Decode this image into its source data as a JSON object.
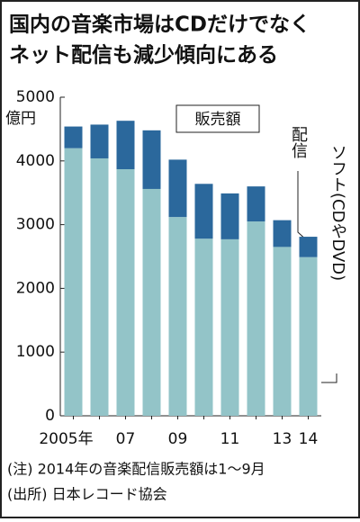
{
  "chart_data": {
    "type": "stacked_bar",
    "title_lines": [
      "国内の音楽市場はCDだけでなく",
      "ネット配信も減少傾向にある"
    ],
    "y_unit": "億円",
    "annotation": "販売額",
    "categories": [
      "2005年",
      null,
      "07",
      null,
      "09",
      null,
      "11",
      null,
      "13",
      "14"
    ],
    "series": [
      {
        "name": "ソフト(CDやDVD)",
        "color": "#93c4c8",
        "values": [
          4200,
          4040,
          3870,
          3560,
          3120,
          2780,
          2770,
          3050,
          2650,
          2490
        ]
      },
      {
        "name": "配信",
        "color": "#2b689c",
        "values": [
          340,
          530,
          760,
          920,
          900,
          860,
          720,
          550,
          420,
          320
        ]
      }
    ],
    "ylim": [
      0,
      5000
    ],
    "yticks": [
      0,
      1000,
      2000,
      3000,
      4000,
      5000
    ],
    "notes": [
      "(注) 2014年の音楽配信販売額は1～9月",
      "(出所) 日本レコード協会"
    ]
  }
}
